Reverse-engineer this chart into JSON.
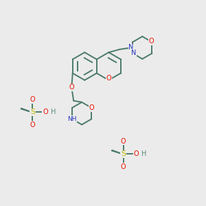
{
  "background_color": "#ebebeb",
  "figsize": [
    3.0,
    3.0
  ],
  "dpi": 100,
  "bond_color": "#4a7a6a",
  "bond_lw": 1.4,
  "dbo": 0.012,
  "atom_colors": {
    "O": "#ee1100",
    "N": "#2233bb",
    "S": "#bbbb00",
    "H": "#5a8a7a",
    "C": "#4a7a6a"
  },
  "fs": 7.0
}
